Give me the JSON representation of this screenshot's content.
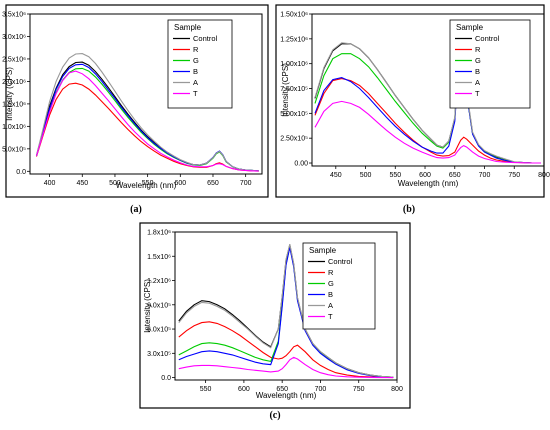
{
  "legend_title": "Sample",
  "series_names": [
    "Control",
    "R",
    "G",
    "B",
    "A",
    "T"
  ],
  "series_colors": [
    "#000000",
    "#ff0000",
    "#00cc00",
    "#0000ff",
    "#999999",
    "#ff00ff"
  ],
  "chart_data": [
    {
      "type": "line",
      "caption": "(a)",
      "xlabel": "Wavelength (nm)",
      "ylabel": "Intensity (CPS)",
      "xlim": [
        370,
        725
      ],
      "ylim": [
        -60000,
        3500000
      ],
      "xticks": [
        400,
        450,
        500,
        550,
        600,
        650,
        700
      ],
      "yticks": [
        0,
        500000,
        1000000,
        1500000,
        2000000,
        2500000,
        3000000,
        3500000
      ],
      "ytick_labels": [
        "0.0",
        "5.0x10⁵",
        "1.0x10⁶",
        "1.5x10⁶",
        "2.0x10⁶",
        "2.5x10⁶",
        "3.0x10⁶",
        "3.5x10⁶"
      ],
      "x": [
        380,
        390,
        400,
        410,
        420,
        430,
        440,
        450,
        460,
        470,
        480,
        490,
        500,
        510,
        520,
        530,
        540,
        550,
        560,
        570,
        580,
        590,
        600,
        610,
        620,
        630,
        640,
        650,
        655,
        660,
        665,
        670,
        680,
        690,
        700,
        710,
        720
      ],
      "series": [
        {
          "name": "Control",
          "values": [
            350000,
            900000,
            1450000,
            1850000,
            2150000,
            2330000,
            2420000,
            2430000,
            2360000,
            2220000,
            2050000,
            1860000,
            1660000,
            1460000,
            1270000,
            1090000,
            920000,
            770000,
            640000,
            520000,
            420000,
            330000,
            250000,
            190000,
            150000,
            140000,
            180000,
            300000,
            400000,
            440000,
            360000,
            220000,
            100000,
            50000,
            30000,
            20000,
            10000
          ]
        },
        {
          "name": "R",
          "values": [
            330000,
            800000,
            1250000,
            1600000,
            1830000,
            1940000,
            1960000,
            1920000,
            1830000,
            1700000,
            1550000,
            1400000,
            1240000,
            1080000,
            930000,
            790000,
            660000,
            550000,
            450000,
            360000,
            290000,
            220000,
            170000,
            130000,
            100000,
            90000,
            90000,
            130000,
            170000,
            190000,
            160000,
            110000,
            60000,
            30000,
            20000,
            10000,
            5000
          ]
        },
        {
          "name": "G",
          "values": [
            340000,
            850000,
            1350000,
            1750000,
            2030000,
            2200000,
            2280000,
            2290000,
            2230000,
            2100000,
            1940000,
            1760000,
            1570000,
            1380000,
            1200000,
            1030000,
            870000,
            730000,
            600000,
            490000,
            390000,
            310000,
            240000,
            180000,
            140000,
            130000,
            170000,
            290000,
            390000,
            430000,
            350000,
            210000,
            100000,
            50000,
            30000,
            20000,
            10000
          ]
        },
        {
          "name": "B",
          "values": [
            350000,
            880000,
            1400000,
            1820000,
            2110000,
            2290000,
            2370000,
            2380000,
            2310000,
            2170000,
            2000000,
            1810000,
            1620000,
            1420000,
            1240000,
            1060000,
            900000,
            750000,
            620000,
            510000,
            410000,
            320000,
            250000,
            190000,
            150000,
            140000,
            180000,
            310000,
            410000,
            450000,
            370000,
            220000,
            100000,
            50000,
            30000,
            20000,
            10000
          ]
        },
        {
          "name": "A",
          "values": [
            360000,
            950000,
            1550000,
            2000000,
            2320000,
            2520000,
            2610000,
            2620000,
            2550000,
            2400000,
            2210000,
            2000000,
            1780000,
            1560000,
            1350000,
            1150000,
            970000,
            810000,
            670000,
            540000,
            430000,
            340000,
            260000,
            200000,
            150000,
            140000,
            180000,
            300000,
            400000,
            440000,
            360000,
            220000,
            100000,
            50000,
            30000,
            20000,
            10000
          ]
        },
        {
          "name": "T",
          "values": [
            340000,
            830000,
            1320000,
            1730000,
            2020000,
            2190000,
            2230000,
            2170000,
            2060000,
            1910000,
            1740000,
            1570000,
            1390000,
            1210000,
            1040000,
            880000,
            740000,
            610000,
            500000,
            400000,
            320000,
            250000,
            190000,
            140000,
            110000,
            100000,
            100000,
            130000,
            160000,
            170000,
            150000,
            110000,
            60000,
            30000,
            20000,
            10000,
            5000
          ]
        }
      ]
    },
    {
      "type": "line",
      "caption": "(b)",
      "xlabel": "Wavelength (nm)",
      "ylabel": "Intensity (CPS)",
      "xlim": [
        410,
        800
      ],
      "ylim": [
        -30000,
        1500000
      ],
      "xticks": [
        450,
        500,
        550,
        600,
        650,
        700,
        750,
        800
      ],
      "yticks": [
        0,
        250000,
        500000,
        750000,
        1000000,
        1250000,
        1500000
      ],
      "ytick_labels": [
        "0.00",
        "2.50x10⁵",
        "5.00x10⁵",
        "7.50x10⁵",
        "1.00x10⁶",
        "1.25x10⁶",
        "1.50x10⁶"
      ],
      "x": [
        415,
        430,
        445,
        460,
        475,
        490,
        505,
        520,
        535,
        550,
        565,
        580,
        595,
        610,
        620,
        630,
        640,
        650,
        655,
        660,
        665,
        670,
        680,
        690,
        700,
        710,
        720,
        735,
        750,
        765,
        780,
        795
      ],
      "series": [
        {
          "name": "Control",
          "values": [
            650000,
            950000,
            1130000,
            1200000,
            1200000,
            1150000,
            1060000,
            940000,
            810000,
            680000,
            560000,
            440000,
            330000,
            240000,
            180000,
            160000,
            220000,
            450000,
            900000,
            1320000,
            1150000,
            700000,
            300000,
            180000,
            120000,
            90000,
            60000,
            30000,
            10000,
            5000,
            0,
            0
          ]
        },
        {
          "name": "R",
          "values": [
            480000,
            700000,
            830000,
            850000,
            830000,
            780000,
            700000,
            600000,
            500000,
            400000,
            310000,
            230000,
            160000,
            110000,
            80000,
            70000,
            75000,
            110000,
            170000,
            230000,
            260000,
            240000,
            180000,
            120000,
            80000,
            50000,
            30000,
            15000,
            8000,
            3000,
            0,
            0
          ]
        },
        {
          "name": "G",
          "values": [
            600000,
            880000,
            1050000,
            1100000,
            1100000,
            1050000,
            970000,
            860000,
            740000,
            620000,
            510000,
            400000,
            300000,
            220000,
            170000,
            150000,
            210000,
            440000,
            880000,
            1300000,
            1130000,
            690000,
            295000,
            175000,
            115000,
            85000,
            55000,
            28000,
            10000,
            5000,
            0,
            0
          ]
        },
        {
          "name": "B",
          "values": [
            500000,
            730000,
            840000,
            860000,
            820000,
            750000,
            660000,
            560000,
            460000,
            370000,
            290000,
            220000,
            160000,
            120000,
            100000,
            100000,
            170000,
            420000,
            860000,
            1310000,
            1140000,
            690000,
            290000,
            170000,
            110000,
            80000,
            50000,
            25000,
            10000,
            5000,
            0,
            0
          ]
        },
        {
          "name": "A",
          "values": [
            660000,
            960000,
            1140000,
            1210000,
            1200000,
            1150000,
            1060000,
            940000,
            810000,
            680000,
            560000,
            440000,
            330000,
            240000,
            180000,
            160000,
            220000,
            460000,
            920000,
            1370000,
            1180000,
            720000,
            310000,
            185000,
            125000,
            95000,
            70000,
            40000,
            12000,
            5000,
            0,
            0
          ]
        },
        {
          "name": "T",
          "values": [
            360000,
            520000,
            600000,
            620000,
            600000,
            560000,
            490000,
            410000,
            330000,
            260000,
            200000,
            150000,
            110000,
            75000,
            55000,
            50000,
            55000,
            80000,
            120000,
            155000,
            175000,
            160000,
            110000,
            70000,
            45000,
            30000,
            15000,
            8000,
            4000,
            2000,
            0,
            0
          ]
        }
      ]
    },
    {
      "type": "line",
      "caption": "(c)",
      "xlabel": "Wavelength (nm)",
      "ylabel": "Intensity (CPS)",
      "xlim": [
        510,
        800
      ],
      "ylim": [
        -30000,
        1800000
      ],
      "xticks": [
        550,
        600,
        650,
        700,
        750,
        800
      ],
      "yticks": [
        0,
        300000,
        600000,
        900000,
        1200000,
        1500000,
        1800000
      ],
      "ytick_labels": [
        "0.0",
        "3.0x10⁵",
        "6.0x10⁵",
        "9.0x10⁵",
        "1.2x10⁶",
        "1.5x10⁶",
        "1.8x10⁶"
      ],
      "x": [
        515,
        525,
        535,
        545,
        555,
        565,
        575,
        585,
        595,
        605,
        615,
        625,
        635,
        645,
        650,
        655,
        660,
        665,
        670,
        680,
        690,
        700,
        710,
        720,
        735,
        750,
        765,
        780,
        795
      ],
      "series": [
        {
          "name": "Control",
          "values": [
            700000,
            820000,
            900000,
            950000,
            940000,
            900000,
            850000,
            780000,
            700000,
            610000,
            520000,
            440000,
            380000,
            600000,
            1000000,
            1450000,
            1640000,
            1400000,
            980000,
            600000,
            420000,
            320000,
            250000,
            180000,
            110000,
            60000,
            30000,
            15000,
            5000
          ]
        },
        {
          "name": "R",
          "values": [
            500000,
            580000,
            640000,
            680000,
            690000,
            670000,
            630000,
            580000,
            520000,
            450000,
            380000,
            310000,
            250000,
            230000,
            240000,
            270000,
            320000,
            380000,
            400000,
            320000,
            220000,
            150000,
            100000,
            60000,
            30000,
            15000,
            8000,
            3000,
            0
          ]
        },
        {
          "name": "G",
          "values": [
            280000,
            330000,
            380000,
            420000,
            430000,
            420000,
            400000,
            370000,
            330000,
            290000,
            250000,
            220000,
            200000,
            450000,
            900000,
            1400000,
            1620000,
            1380000,
            960000,
            590000,
            410000,
            310000,
            240000,
            170000,
            100000,
            55000,
            28000,
            12000,
            5000
          ]
        },
        {
          "name": "B",
          "values": [
            220000,
            260000,
            290000,
            320000,
            330000,
            320000,
            300000,
            280000,
            250000,
            220000,
            190000,
            170000,
            160000,
            420000,
            880000,
            1390000,
            1610000,
            1370000,
            950000,
            580000,
            400000,
            300000,
            230000,
            165000,
            95000,
            52000,
            25000,
            10000,
            3000
          ]
        },
        {
          "name": "A",
          "values": [
            680000,
            800000,
            880000,
            930000,
            920000,
            880000,
            830000,
            760000,
            680000,
            600000,
            510000,
            430000,
            370000,
            600000,
            1010000,
            1460000,
            1650000,
            1410000,
            990000,
            600000,
            420000,
            320000,
            250000,
            180000,
            110000,
            60000,
            30000,
            15000,
            5000
          ]
        },
        {
          "name": "T",
          "values": [
            110000,
            130000,
            145000,
            150000,
            150000,
            145000,
            135000,
            125000,
            115000,
            100000,
            90000,
            80000,
            70000,
            80000,
            110000,
            160000,
            220000,
            250000,
            230000,
            160000,
            100000,
            60000,
            35000,
            20000,
            10000,
            5000,
            2000,
            0,
            0
          ]
        }
      ]
    }
  ]
}
